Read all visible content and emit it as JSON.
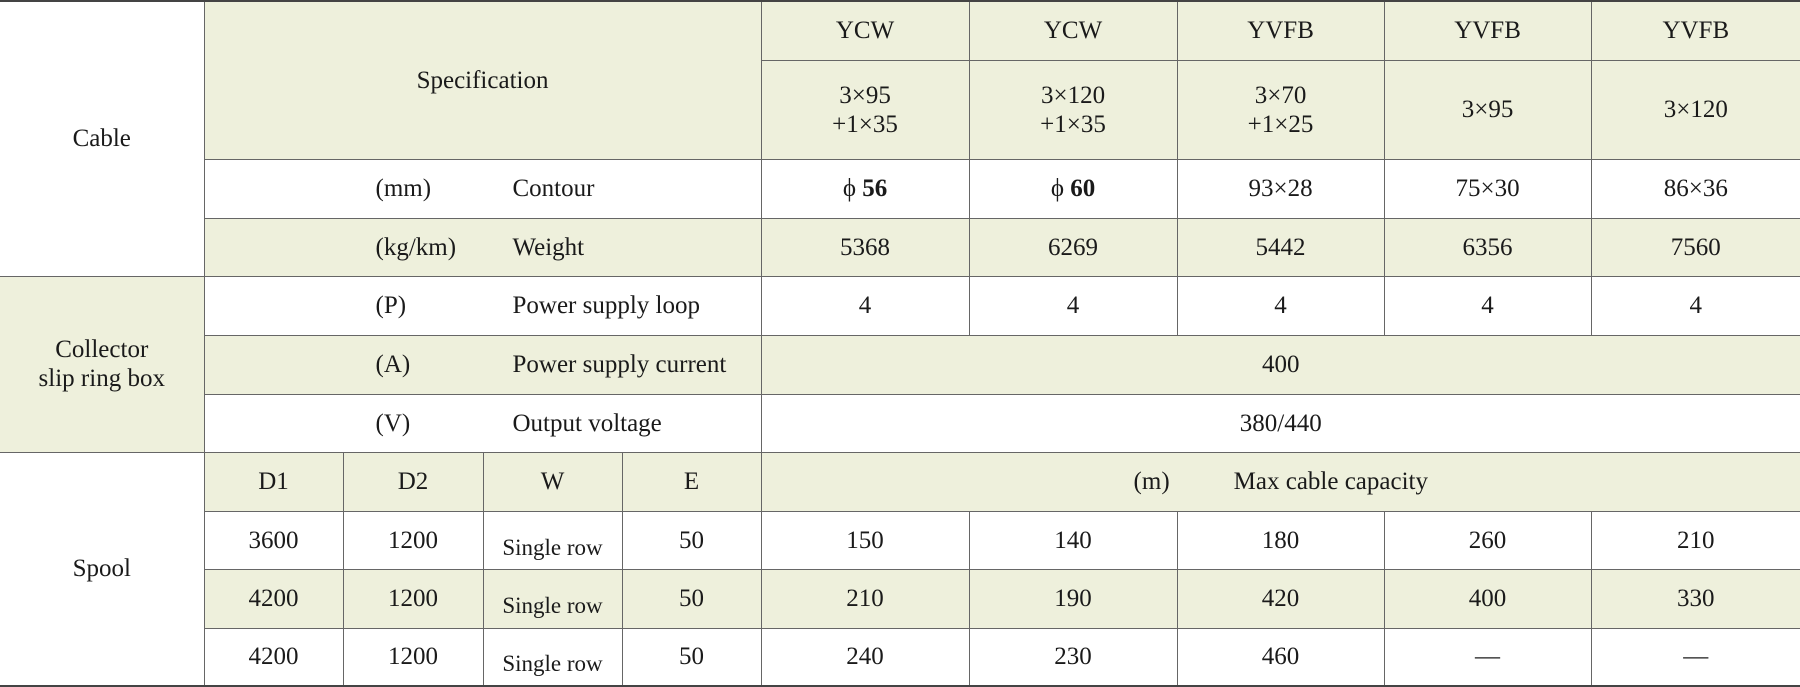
{
  "cable_label": "Cable",
  "collector_label": [
    "Collector",
    "slip ring box"
  ],
  "spool_label": "Spool",
  "specification_label": "Specification",
  "models": [
    {
      "type": "YCW",
      "spec": [
        "3×95",
        "+1×35"
      ]
    },
    {
      "type": "YCW",
      "spec": [
        "3×120",
        "+1×35"
      ]
    },
    {
      "type": "YVFB",
      "spec": [
        "3×70",
        "+1×25"
      ]
    },
    {
      "type": "YVFB",
      "spec": [
        "3×95"
      ]
    },
    {
      "type": "YVFB",
      "spec": [
        "3×120"
      ]
    }
  ],
  "contour": {
    "unit": "(mm)",
    "name": "Contour",
    "values": [
      {
        "symbol": "ϕ",
        "value": 56
      },
      {
        "symbol": "ϕ",
        "value": 60
      },
      "93×28",
      "75×30",
      "86×36"
    ]
  },
  "weight": {
    "unit": "(kg/km)",
    "name": "Weight",
    "values": [
      5368,
      6269,
      5442,
      6356,
      7560
    ]
  },
  "power_loop": {
    "unit": "(P)",
    "name": "Power supply loop",
    "values": [
      4,
      4,
      4,
      4,
      4
    ]
  },
  "current": {
    "unit": "(A)",
    "name": "Power supply current",
    "value": 400
  },
  "voltage": {
    "unit": "(V)",
    "name": "Output voltage",
    "value": "380/440"
  },
  "spool": {
    "headers": [
      "D1",
      "D2",
      "W",
      "E"
    ],
    "capacity_unit": "(m)",
    "capacity_label": "Max cable capacity",
    "rows": [
      {
        "cells": [
          3600,
          1200,
          "Single row",
          50
        ],
        "capacity": [
          150,
          140,
          180,
          260,
          210
        ]
      },
      {
        "cells": [
          4200,
          1200,
          "Single row",
          50
        ],
        "capacity": [
          210,
          190,
          420,
          400,
          330
        ]
      },
      {
        "cells": [
          4200,
          1200,
          "Single row",
          50
        ],
        "capacity": [
          240,
          230,
          460,
          "—",
          "—"
        ]
      }
    ]
  }
}
